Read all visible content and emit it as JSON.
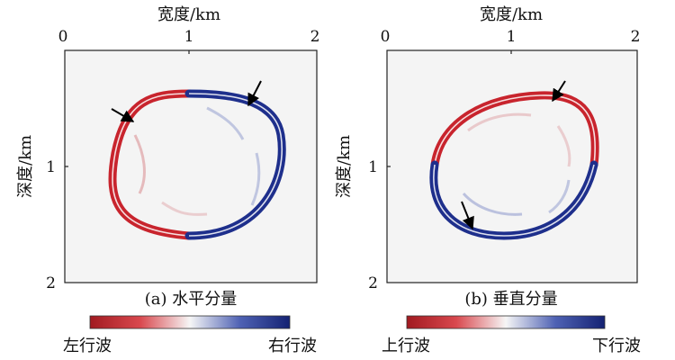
{
  "panels": [
    {
      "id": "a",
      "caption": "(a) 水平分量",
      "x_axis_label": "宽度/km",
      "y_axis_label": "深度/km",
      "x_ticks": [
        "0",
        "1",
        "2"
      ],
      "y_ticks": [
        "1",
        "2"
      ],
      "colorbar": {
        "left_label": "左行波",
        "right_label": "右行波"
      },
      "arrow_count": 2
    },
    {
      "id": "b",
      "caption": "(b) 垂直分量",
      "x_axis_label": "宽度/km",
      "y_axis_label": "深度/km",
      "x_ticks": [
        "0",
        "1",
        "2"
      ],
      "y_ticks": [
        "1",
        "2"
      ],
      "colorbar": {
        "left_label": "上行波",
        "right_label": "下行波"
      },
      "arrow_count": 2
    }
  ],
  "colors": {
    "negative": "#c8242d",
    "positive": "#1e2f8c",
    "background": "#f4f4f4"
  }
}
